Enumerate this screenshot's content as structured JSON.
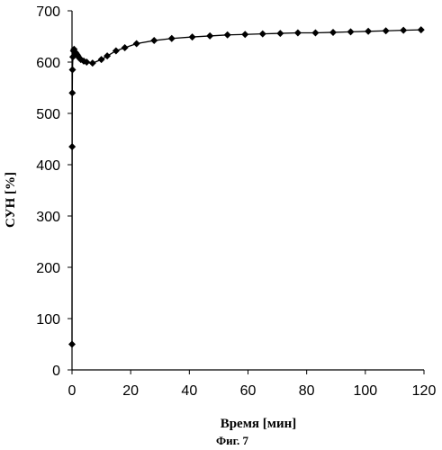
{
  "figure": {
    "caption": "Фиг. 7"
  },
  "chart_data": {
    "type": "line",
    "title": "",
    "xlabel": "Время [мин]",
    "ylabel": "СУН [%]",
    "xlim": [
      0,
      120
    ],
    "ylim": [
      0,
      700
    ],
    "x_ticks": [
      "0",
      "20",
      "40",
      "60",
      "80",
      "100",
      "120"
    ],
    "y_ticks": [
      "0",
      "100",
      "200",
      "300",
      "400",
      "500",
      "600",
      "700"
    ],
    "grid": false,
    "legend": "none",
    "marker": "diamond",
    "line_color": "#000000",
    "series": [
      {
        "x": [
          0,
          0.05,
          0.1,
          0.15,
          0.3,
          0.5,
          0.7,
          1,
          1.3,
          1.7,
          2,
          2.5,
          3,
          4,
          5,
          7,
          10,
          12,
          15,
          18,
          22,
          28,
          34,
          41,
          47,
          53,
          59,
          65,
          71,
          77,
          83,
          89,
          95,
          101,
          107,
          113,
          119
        ],
        "y": [
          50,
          435,
          540,
          585,
          610,
          622,
          625,
          620,
          618,
          615,
          612,
          608,
          605,
          602,
          600,
          598,
          605,
          612,
          622,
          628,
          636,
          642,
          646,
          649,
          651,
          653,
          654,
          655,
          656,
          657,
          657,
          658,
          659,
          660,
          661,
          662,
          663
        ]
      }
    ]
  }
}
